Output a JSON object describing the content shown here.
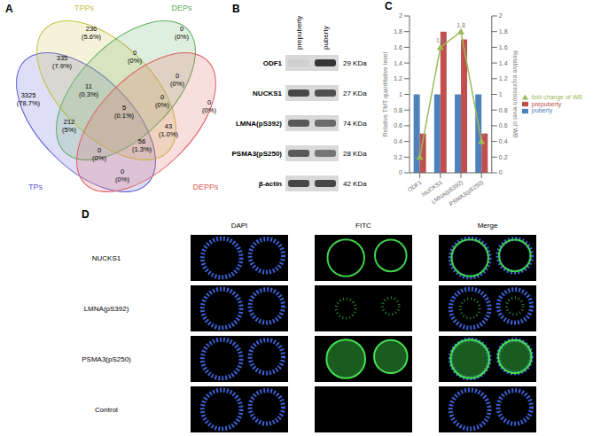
{
  "panel_labels": [
    "A",
    "B",
    "C",
    "D"
  ],
  "venn": {
    "sets": [
      {
        "name": "TPs",
        "color": "#5b5bd6"
      },
      {
        "name": "TPPs",
        "color": "#c8c040"
      },
      {
        "name": "DEPs",
        "color": "#5fae5f"
      },
      {
        "name": "DEPPs",
        "color": "#e05a5a"
      }
    ],
    "regions": [
      {
        "sets": [
          "TPPs"
        ],
        "count": 236,
        "percent": "(5.6%)"
      },
      {
        "sets": [
          "DEPs"
        ],
        "count": 0,
        "percent": "(0%)"
      },
      {
        "sets": [
          "TPs"
        ],
        "count": 3325,
        "percent": "(78.7%)"
      },
      {
        "sets": [
          "TPs",
          "TPPs"
        ],
        "count": 335,
        "percent": "(7.9%)"
      },
      {
        "sets": [
          "TPPs",
          "DEPs"
        ],
        "count": 0,
        "percent": "(0%)"
      },
      {
        "sets": [
          "DEPs",
          "DEPPs"
        ],
        "count": 0,
        "percent": "(0%)"
      },
      {
        "sets": [
          "DEPPs"
        ],
        "count": 0,
        "percent": "(0%)"
      },
      {
        "sets": [
          "TPs",
          "TPPs",
          "DEPs"
        ],
        "count": 11,
        "percent": "(0.3%)"
      },
      {
        "sets": [
          "TPPs",
          "DEPs",
          "DEPPs"
        ],
        "count": 0,
        "percent": "(0%)"
      },
      {
        "sets": [
          "TPs",
          "DEPs"
        ],
        "count": 212,
        "percent": "(5%)"
      },
      {
        "sets": [
          "TPs",
          "TPPs",
          "DEPs",
          "DEPPs"
        ],
        "count": 5,
        "percent": "(0.1%)"
      },
      {
        "sets": [
          "TPPs",
          "DEPPs"
        ],
        "count": 43,
        "percent": "(1.0%)"
      },
      {
        "sets": [
          "TPs",
          "DEPs",
          "DEPPs"
        ],
        "count": 0,
        "percent": "(0%)"
      },
      {
        "sets": [
          "TPs",
          "TPPs",
          "DEPPs"
        ],
        "count": 56,
        "percent": "(1.3%)"
      },
      {
        "sets": [
          "TPs",
          "DEPPs"
        ],
        "count": 0,
        "percent": "(0%)"
      }
    ]
  },
  "western_blot": {
    "lanes": [
      "prepuberty",
      "puberty"
    ],
    "rows": [
      {
        "protein": "ODF1",
        "size": "29 KDa",
        "bands": [
          0.05,
          0.9
        ]
      },
      {
        "protein": "NUCKS1",
        "size": "27 KDa",
        "bands": [
          0.8,
          0.75
        ]
      },
      {
        "protein": "LMNA(pS392)",
        "size": "74 KDa",
        "bands": [
          0.7,
          0.6
        ]
      },
      {
        "protein": "PSMA3(pS250)",
        "size": "28 KDa",
        "bands": [
          0.7,
          0.55
        ]
      },
      {
        "protein": "β-actin",
        "size": "42 KDa",
        "bands": [
          0.8,
          0.8
        ]
      }
    ]
  },
  "chart_data": {
    "type": "bar",
    "categories": [
      "ODF1",
      "NUCKS1",
      "LMNA(pS392)",
      "PSMA3(pS250)"
    ],
    "series": [
      {
        "name": "puberty",
        "type": "bar",
        "color": "#4f81bd",
        "values": [
          1,
          1,
          1,
          1
        ]
      },
      {
        "name": "prepuberty",
        "type": "bar",
        "color": "#c0504d",
        "values": [
          0.5,
          1.8,
          1.7,
          0.5
        ]
      },
      {
        "name": "fold change of WB",
        "type": "line",
        "axis": "y2",
        "color": "#9bbb59",
        "marker": "triangle",
        "data_labels": true,
        "values": [
          0.2,
          1.6,
          1.8,
          0.4
        ]
      }
    ],
    "ylabel": "Relative TMT quantitative level",
    "y2label": "Relative expression level of WB",
    "ylim": [
      0,
      2
    ],
    "yticks": [
      0,
      0.2,
      0.4,
      0.6,
      0.8,
      1,
      1.2,
      1.4,
      1.6,
      1.8,
      2
    ],
    "y2lim": [
      0,
      2
    ],
    "y2ticks": [
      0,
      0.2,
      0.4,
      0.6,
      0.8,
      1,
      1.2,
      1.4,
      1.6,
      1.8,
      2
    ],
    "legend": "right",
    "grid": false
  },
  "immunofluorescence": {
    "columns": [
      "DAPI",
      "FITC",
      "Merge"
    ],
    "rows": [
      "NUCKS1",
      "LMNA(pS392)",
      "PSMA3(pS250)",
      "Control"
    ]
  }
}
